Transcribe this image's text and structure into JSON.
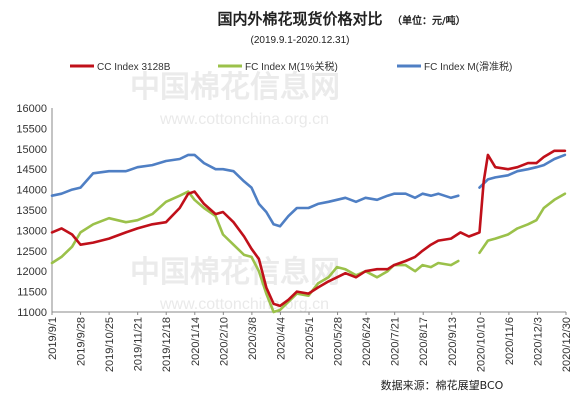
{
  "chart_data": {
    "type": "line",
    "title": "国内外棉花现货价格对比",
    "unit": "（单位：元/吨）",
    "subtitle": "(2019.9.1-2020.12.31)",
    "source": "数据来源：棉花展望BCO",
    "watermark_text": "中国棉花信息网",
    "watermark_url": "www.cottonchina.org.cn",
    "ylim": [
      11000,
      16000
    ],
    "yticks": [
      "16000",
      "15500",
      "15000",
      "14500",
      "14000",
      "13500",
      "13000",
      "12500",
      "12000",
      "11500",
      "11000"
    ],
    "xlim": [
      "2019-09-01",
      "2020-12-31"
    ],
    "xticks": [
      "2019/9/1",
      "2019/9/28",
      "2019/10/25",
      "2019/11/21",
      "2019/12/18",
      "2020/1/14",
      "2020/2/10",
      "2020/3/8",
      "2020/4/4",
      "2020/5/1",
      "2020/5/28",
      "2020/6/24",
      "2020/7/21",
      "2020/8/17",
      "2020/9/13",
      "2020/10/10",
      "2020/11/6",
      "2020/12/3",
      "2020/12/30"
    ],
    "colors": {
      "cc": "#c0101a",
      "fc1": "#9bc14a",
      "fc2": "#4f7fc4"
    },
    "series": [
      {
        "name": "CC Index 3128B",
        "x": [
          "2019-09-01",
          "2019-09-10",
          "2019-09-20",
          "2019-09-28",
          "2019-10-10",
          "2019-10-25",
          "2019-11-10",
          "2019-11-21",
          "2019-12-05",
          "2019-12-18",
          "2019-12-31",
          "2020-01-08",
          "2020-01-14",
          "2020-01-23",
          "2020-02-03",
          "2020-02-10",
          "2020-02-20",
          "2020-03-01",
          "2020-03-08",
          "2020-03-15",
          "2020-03-22",
          "2020-03-29",
          "2020-04-04",
          "2020-04-12",
          "2020-04-20",
          "2020-05-01",
          "2020-05-10",
          "2020-05-20",
          "2020-05-28",
          "2020-06-05",
          "2020-06-15",
          "2020-06-24",
          "2020-07-05",
          "2020-07-15",
          "2020-07-21",
          "2020-08-01",
          "2020-08-10",
          "2020-08-17",
          "2020-08-25",
          "2020-09-01",
          "2020-09-13",
          "2020-09-22",
          "2020-09-30",
          "2020-10-05",
          "2020-10-10",
          "2020-10-14",
          "2020-10-18",
          "2020-10-25",
          "2020-11-06",
          "2020-11-15",
          "2020-11-25",
          "2020-12-03",
          "2020-12-10",
          "2020-12-20",
          "2020-12-30"
        ],
        "y": [
          12950,
          13050,
          12900,
          12650,
          12700,
          12800,
          12950,
          13050,
          13150,
          13200,
          13550,
          13900,
          13950,
          13650,
          13400,
          13450,
          13200,
          12850,
          12550,
          12300,
          11600,
          11200,
          11150,
          11300,
          11500,
          11450,
          11600,
          11750,
          11850,
          11950,
          11850,
          12000,
          12050,
          12050,
          12150,
          12250,
          12350,
          12500,
          12650,
          12750,
          12800,
          12950,
          12850,
          12900,
          12950,
          14200,
          14850,
          14550,
          14500,
          14550,
          14650,
          14650,
          14800,
          14950,
          14950
        ]
      },
      {
        "name": "FC Index M(1%关税)",
        "x": [
          "2019-09-01",
          "2019-09-10",
          "2019-09-20",
          "2019-09-28",
          "2019-10-10",
          "2019-10-25",
          "2019-11-10",
          "2019-11-21",
          "2019-12-05",
          "2019-12-18",
          "2019-12-31",
          "2020-01-08",
          "2020-01-14",
          "2020-01-23",
          "2020-02-03",
          "2020-02-10",
          "2020-02-20",
          "2020-03-01",
          "2020-03-08",
          "2020-03-15",
          "2020-03-22",
          "2020-03-29",
          "2020-04-04",
          "2020-04-12",
          "2020-04-20",
          "2020-05-01",
          "2020-05-10",
          "2020-05-20",
          "2020-05-28",
          "2020-06-05",
          "2020-06-15",
          "2020-06-24",
          "2020-07-05",
          "2020-07-15",
          "2020-07-21",
          "2020-08-01",
          "2020-08-10",
          "2020-08-17",
          "2020-08-25",
          "2020-09-01",
          "2020-09-13",
          "2020-09-20"
        ],
        "y": [
          12200,
          12350,
          12600,
          12950,
          13150,
          13300,
          13200,
          13250,
          13400,
          13700,
          13850,
          13950,
          13750,
          13550,
          13350,
          12900,
          12650,
          12400,
          12350,
          12000,
          11450,
          11000,
          11050,
          11250,
          11450,
          11400,
          11700,
          11850,
          12100,
          12050,
          11900,
          12000,
          11850,
          12000,
          12150,
          12150,
          12000,
          12150,
          12100,
          12200,
          12150,
          12250
        ]
      },
      {
        "name": "FC Index M(1%关税)",
        "x": [
          "2020-10-10",
          "2020-10-18",
          "2020-10-25",
          "2020-11-06",
          "2020-11-15",
          "2020-11-25",
          "2020-12-03",
          "2020-12-10",
          "2020-12-20",
          "2020-12-30"
        ],
        "y": [
          12450,
          12750,
          12800,
          12900,
          13050,
          13150,
          13250,
          13550,
          13750,
          13900
        ]
      },
      {
        "name": "FC Index M(滑准税)",
        "x": [
          "2019-09-01",
          "2019-09-10",
          "2019-09-20",
          "2019-09-28",
          "2019-10-10",
          "2019-10-25",
          "2019-11-10",
          "2019-11-21",
          "2019-12-05",
          "2019-12-18",
          "2019-12-31",
          "2020-01-08",
          "2020-01-14",
          "2020-01-23",
          "2020-02-03",
          "2020-02-10",
          "2020-02-20",
          "2020-03-01",
          "2020-03-08",
          "2020-03-15",
          "2020-03-22",
          "2020-03-29",
          "2020-04-04",
          "2020-04-12",
          "2020-04-20",
          "2020-05-01",
          "2020-05-10",
          "2020-05-20",
          "2020-05-28",
          "2020-06-05",
          "2020-06-15",
          "2020-06-24",
          "2020-07-05",
          "2020-07-15",
          "2020-07-21",
          "2020-08-01",
          "2020-08-10",
          "2020-08-17",
          "2020-08-25",
          "2020-09-01",
          "2020-09-13",
          "2020-09-20"
        ],
        "y": [
          13850,
          13900,
          14000,
          14050,
          14400,
          14450,
          14450,
          14550,
          14600,
          14700,
          14750,
          14850,
          14850,
          14650,
          14500,
          14500,
          14450,
          14200,
          14050,
          13650,
          13450,
          13150,
          13100,
          13350,
          13550,
          13550,
          13650,
          13700,
          13750,
          13800,
          13700,
          13800,
          13750,
          13850,
          13900,
          13900,
          13800,
          13900,
          13850,
          13900,
          13800,
          13850
        ]
      },
      {
        "name": "FC Index M(滑准税)",
        "x": [
          "2020-10-10",
          "2020-10-18",
          "2020-10-25",
          "2020-11-06",
          "2020-11-15",
          "2020-11-25",
          "2020-12-03",
          "2020-12-10",
          "2020-12-20",
          "2020-12-30"
        ],
        "y": [
          14050,
          14250,
          14300,
          14350,
          14450,
          14500,
          14550,
          14600,
          14750,
          14850
        ]
      }
    ]
  }
}
